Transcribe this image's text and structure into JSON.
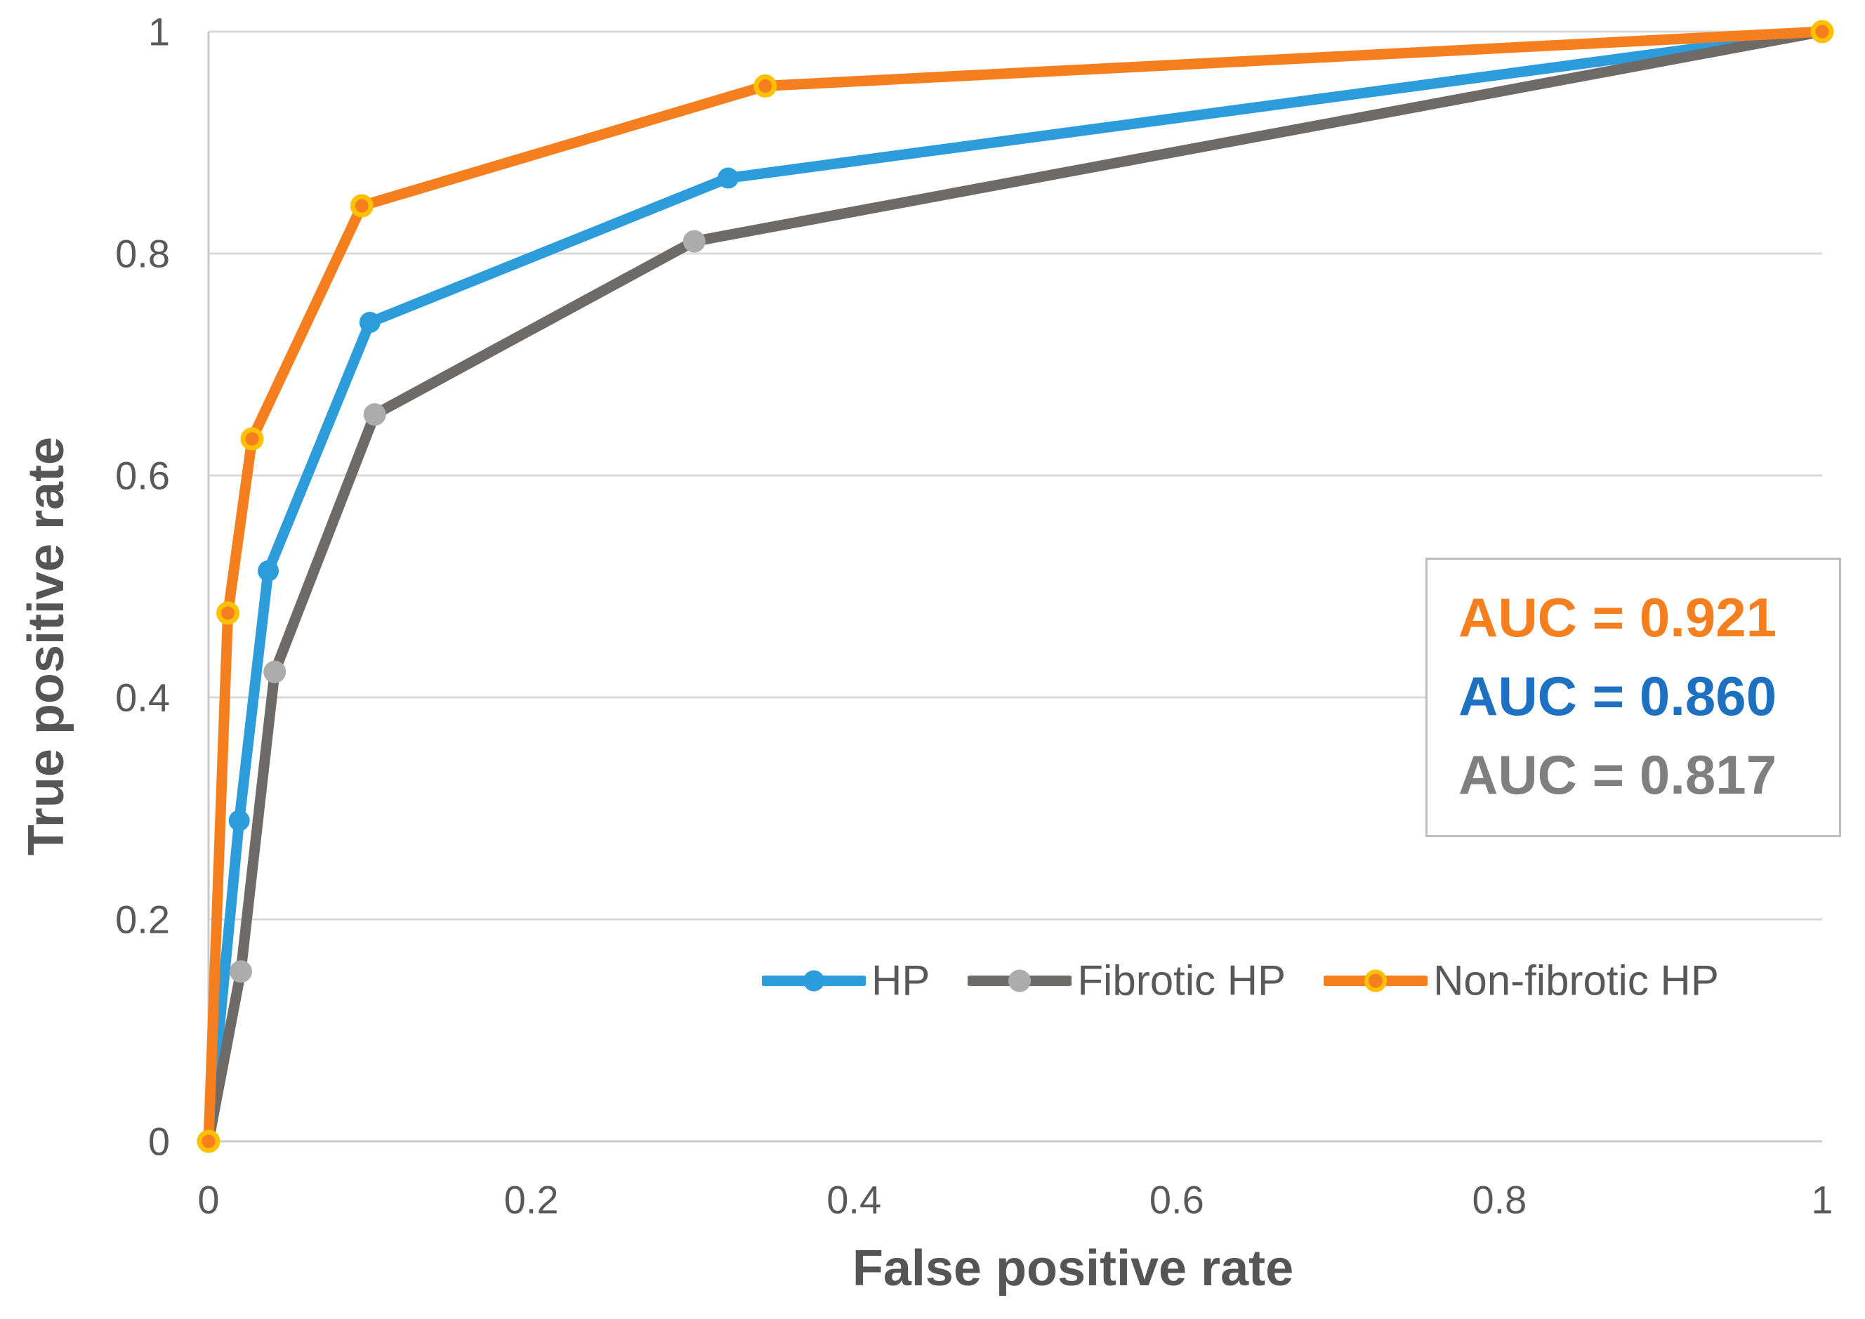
{
  "chart_data": {
    "type": "line",
    "title": "",
    "xlabel": "False positive rate",
    "ylabel": "True positive rate",
    "xlim": [
      0,
      1
    ],
    "ylim": [
      0,
      1
    ],
    "tick_values": [
      0,
      0.2,
      0.4,
      0.6,
      0.8,
      1
    ],
    "tick_labels": [
      "0",
      "0.2",
      "0.4",
      "0.6",
      "0.8",
      "1"
    ],
    "grid": "horizontal-only",
    "legend_position": "inside-bottom-right",
    "series": [
      {
        "name": "HP",
        "auc": 0.86,
        "line_color": "#2D9CDB",
        "marker_fill": "#2D9CDB",
        "marker_ring": null,
        "marker_radius": 15,
        "points": [
          [
            0,
            0
          ],
          [
            0.019,
            0.289
          ],
          [
            0.037,
            0.514
          ],
          [
            0.1,
            0.738
          ],
          [
            0.322,
            0.868
          ],
          [
            1,
            1
          ]
        ]
      },
      {
        "name": "Fibrotic HP",
        "auc": 0.817,
        "line_color": "#6D6A67",
        "marker_fill": "#ACACAC",
        "marker_ring": null,
        "marker_radius": 16,
        "points": [
          [
            0,
            0
          ],
          [
            0.02,
            0.153
          ],
          [
            0.041,
            0.423
          ],
          [
            0.103,
            0.655
          ],
          [
            0.301,
            0.811
          ],
          [
            1,
            1
          ]
        ]
      },
      {
        "name": "Non-fibrotic HP",
        "auc": 0.921,
        "line_color": "#F57E1E",
        "marker_fill": "#F57E1E",
        "marker_ring": "#FFC000",
        "marker_radius": 13,
        "points": [
          [
            0,
            0
          ],
          [
            0.012,
            0.476
          ],
          [
            0.027,
            0.633
          ],
          [
            0.095,
            0.843
          ],
          [
            0.345,
            0.951
          ],
          [
            1,
            1
          ]
        ]
      }
    ],
    "annotation_box": {
      "lines": [
        {
          "text": "AUC = 0.921",
          "color": "#F57E1E"
        },
        {
          "text": "AUC = 0.860",
          "color": "#1E70C1"
        },
        {
          "text": "AUC = 0.817",
          "color": "#7F7F7F"
        }
      ]
    }
  },
  "style_colors": {
    "gridline": "#D9D9D9",
    "axis_line": "#C9C9C9",
    "tick_text": "#595959",
    "box_border": "#BFBFBF"
  }
}
